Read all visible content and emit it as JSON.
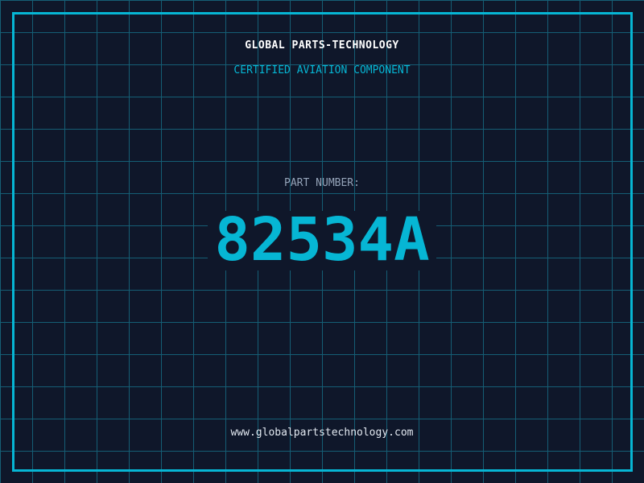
{
  "header": {
    "title": "GLOBAL PARTS-TECHNOLOGY",
    "subtitle": "CERTIFIED AVIATION COMPONENT"
  },
  "part": {
    "label": "PART NUMBER:",
    "number": "82534A"
  },
  "footer": {
    "url": "www.globalpartstechnology.com"
  },
  "colors": {
    "background": "#0f172a",
    "grid": "#155e75",
    "accent": "#06b6d4",
    "label": "#94a3b8"
  }
}
